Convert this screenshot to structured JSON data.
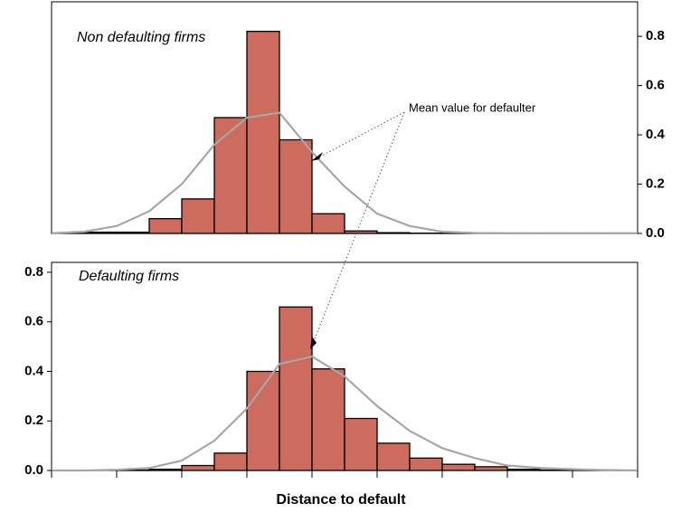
{
  "chart_data": [
    {
      "type": "histogram",
      "label": "Non defaulting firms",
      "bins": [
        0,
        1,
        2,
        3,
        4,
        5,
        6,
        7,
        8,
        9,
        10,
        11,
        12,
        13,
        14,
        15,
        16,
        17,
        18
      ],
      "values": [
        0.002,
        0.005,
        0.005,
        0.06,
        0.14,
        0.47,
        0.82,
        0.38,
        0.08,
        0.01,
        0.003,
        0.001,
        0.001,
        0.001,
        0.001,
        0.001,
        0.001,
        0.001
      ],
      "color": "#cc6b5e",
      "curve": {
        "x": [
          0,
          1,
          2,
          3,
          4,
          5,
          6,
          7,
          8,
          9,
          10,
          11,
          12,
          13,
          14,
          15,
          16,
          17,
          18
        ],
        "values": [
          0.001,
          0.007,
          0.03,
          0.09,
          0.2,
          0.36,
          0.47,
          0.49,
          0.33,
          0.19,
          0.08,
          0.03,
          0.007,
          0.002,
          0.001,
          0.001,
          0.001,
          0.001,
          0.001
        ],
        "color": "#a6a6a6"
      },
      "xlim": [
        0,
        18
      ],
      "ylim": [
        0,
        0.94
      ],
      "yticks": [
        {
          "value": 0,
          "label": "0.0"
        },
        0.2,
        0.4,
        0.6,
        0.8
      ],
      "y_axis_side": "right",
      "annotation": "Mean value for defaulter"
    },
    {
      "type": "histogram",
      "label": "Defaulting firms",
      "bins": [
        0,
        1,
        2,
        3,
        4,
        5,
        6,
        7,
        8,
        9,
        10,
        11,
        12,
        13,
        14,
        15,
        16,
        17,
        18
      ],
      "values": [
        0.001,
        0.001,
        0.002,
        0.005,
        0.02,
        0.07,
        0.4,
        0.66,
        0.41,
        0.21,
        0.11,
        0.05,
        0.025,
        0.015,
        0.005,
        0.002,
        0.001,
        0.001
      ],
      "color": "#cc6b5e",
      "curve": {
        "x": [
          0,
          1,
          2,
          3,
          4,
          5,
          6,
          7,
          8,
          9,
          10,
          11,
          12,
          13,
          14,
          15,
          16,
          17,
          18
        ],
        "values": [
          0,
          0,
          0.003,
          0.01,
          0.04,
          0.12,
          0.25,
          0.43,
          0.46,
          0.38,
          0.26,
          0.16,
          0.09,
          0.05,
          0.02,
          0.01,
          0.005,
          0.002,
          0
        ],
        "color": "#a6a6a6"
      },
      "xlim": [
        0,
        18
      ],
      "ylim": [
        0,
        0.84
      ],
      "yticks": [
        {
          "value": 0,
          "label": "0.0"
        },
        0.2,
        0.4,
        0.6,
        0.8
      ],
      "xticks": [
        0,
        2,
        4,
        6,
        8,
        10,
        12,
        14,
        16,
        18
      ],
      "y_axis_side": "left",
      "x_label": "Distance to default"
    }
  ]
}
